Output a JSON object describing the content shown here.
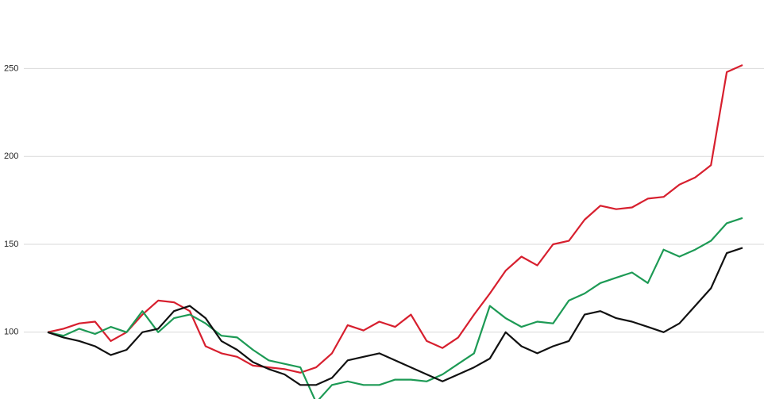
{
  "chart_data": {
    "type": "line",
    "ylim": [
      62,
      289
    ],
    "yticks": [
      100,
      150,
      200,
      250
    ],
    "grid": true,
    "series": [
      {
        "color": "#d71f2e",
        "values": [
          100,
          102,
          105,
          106,
          95,
          100,
          110,
          118,
          117,
          112,
          92,
          88,
          86,
          81,
          80,
          79,
          77,
          80,
          88,
          104,
          101,
          106,
          103,
          110,
          95,
          91,
          97,
          110,
          122,
          135,
          143,
          138,
          150,
          152,
          164,
          172,
          170,
          171,
          176,
          177,
          184,
          188,
          195,
          248,
          252
        ]
      },
      {
        "color": "#1d9a55",
        "values": [
          100,
          98,
          102,
          99,
          103,
          100,
          112,
          100,
          108,
          110,
          105,
          98,
          97,
          90,
          84,
          82,
          80,
          60,
          70,
          72,
          70,
          70,
          73,
          73,
          72,
          76,
          82,
          88,
          115,
          108,
          103,
          106,
          105,
          118,
          122,
          128,
          131,
          134,
          128,
          147,
          143,
          147,
          152,
          162,
          165
        ]
      },
      {
        "color": "#111111",
        "values": [
          100,
          97,
          95,
          92,
          87,
          90,
          100,
          102,
          112,
          115,
          108,
          95,
          90,
          83,
          79,
          76,
          70,
          70,
          74,
          84,
          86,
          88,
          84,
          80,
          76,
          72,
          76,
          80,
          85,
          100,
          92,
          88,
          92,
          95,
          110,
          112,
          108,
          106,
          103,
          100,
          105,
          115,
          125,
          145,
          148
        ]
      }
    ]
  }
}
